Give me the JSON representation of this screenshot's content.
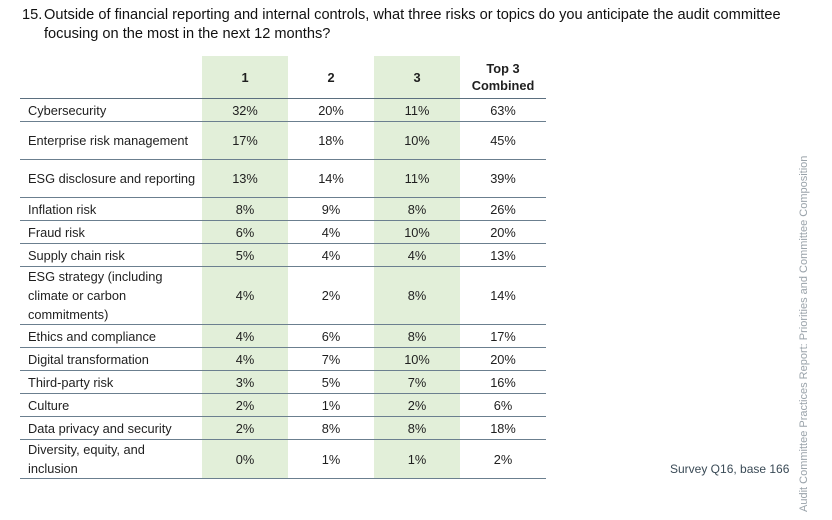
{
  "question": {
    "number": "15.",
    "text": "Outside of financial reporting and internal controls, what three risks or topics do you anticipate the audit committee focusing on the most in the next 12 months?"
  },
  "table": {
    "headers": [
      "",
      "1",
      "2",
      "3",
      "Top 3\nCombined"
    ],
    "rows": [
      {
        "label": "Cybersecurity",
        "values": [
          "32%",
          "20%",
          "11%",
          "63%"
        ],
        "lines": 1
      },
      {
        "label": "Enterprise risk management",
        "values": [
          "17%",
          "18%",
          "10%",
          "45%"
        ],
        "lines": 2
      },
      {
        "label": "ESG disclosure and reporting",
        "values": [
          "13%",
          "14%",
          "11%",
          "39%"
        ],
        "lines": 2
      },
      {
        "label": "Inflation risk",
        "values": [
          "8%",
          "9%",
          "8%",
          "26%"
        ],
        "lines": 1
      },
      {
        "label": "Fraud risk",
        "values": [
          "6%",
          "4%",
          "10%",
          "20%"
        ],
        "lines": 1
      },
      {
        "label": "Supply chain risk",
        "values": [
          "5%",
          "4%",
          "4%",
          "13%"
        ],
        "lines": 1
      },
      {
        "label": "ESG strategy (including climate or carbon commitments)",
        "values": [
          "4%",
          "2%",
          "8%",
          "14%"
        ],
        "lines": 3
      },
      {
        "label": "Ethics and compliance",
        "values": [
          "4%",
          "6%",
          "8%",
          "17%"
        ],
        "lines": 1
      },
      {
        "label": "Digital transformation",
        "values": [
          "4%",
          "7%",
          "10%",
          "20%"
        ],
        "lines": 1
      },
      {
        "label": "Third-party risk",
        "values": [
          "3%",
          "5%",
          "7%",
          "16%"
        ],
        "lines": 1
      },
      {
        "label": "Culture",
        "values": [
          "2%",
          "1%",
          "2%",
          "6%"
        ],
        "lines": 1
      },
      {
        "label": "Data privacy and security",
        "values": [
          "2%",
          "8%",
          "8%",
          "18%"
        ],
        "lines": 1
      },
      {
        "label": "Diversity, equity, and inclusion",
        "values": [
          "0%",
          "1%",
          "1%",
          "2%"
        ],
        "lines": 2
      }
    ]
  },
  "source_note": "Survey Q16, base 166",
  "side_text": "Audit Committee Practices Report: Priorities and Committee Composition",
  "colors": {
    "highlight_green": "#e2efd9",
    "rule": "#6b7f8f"
  }
}
